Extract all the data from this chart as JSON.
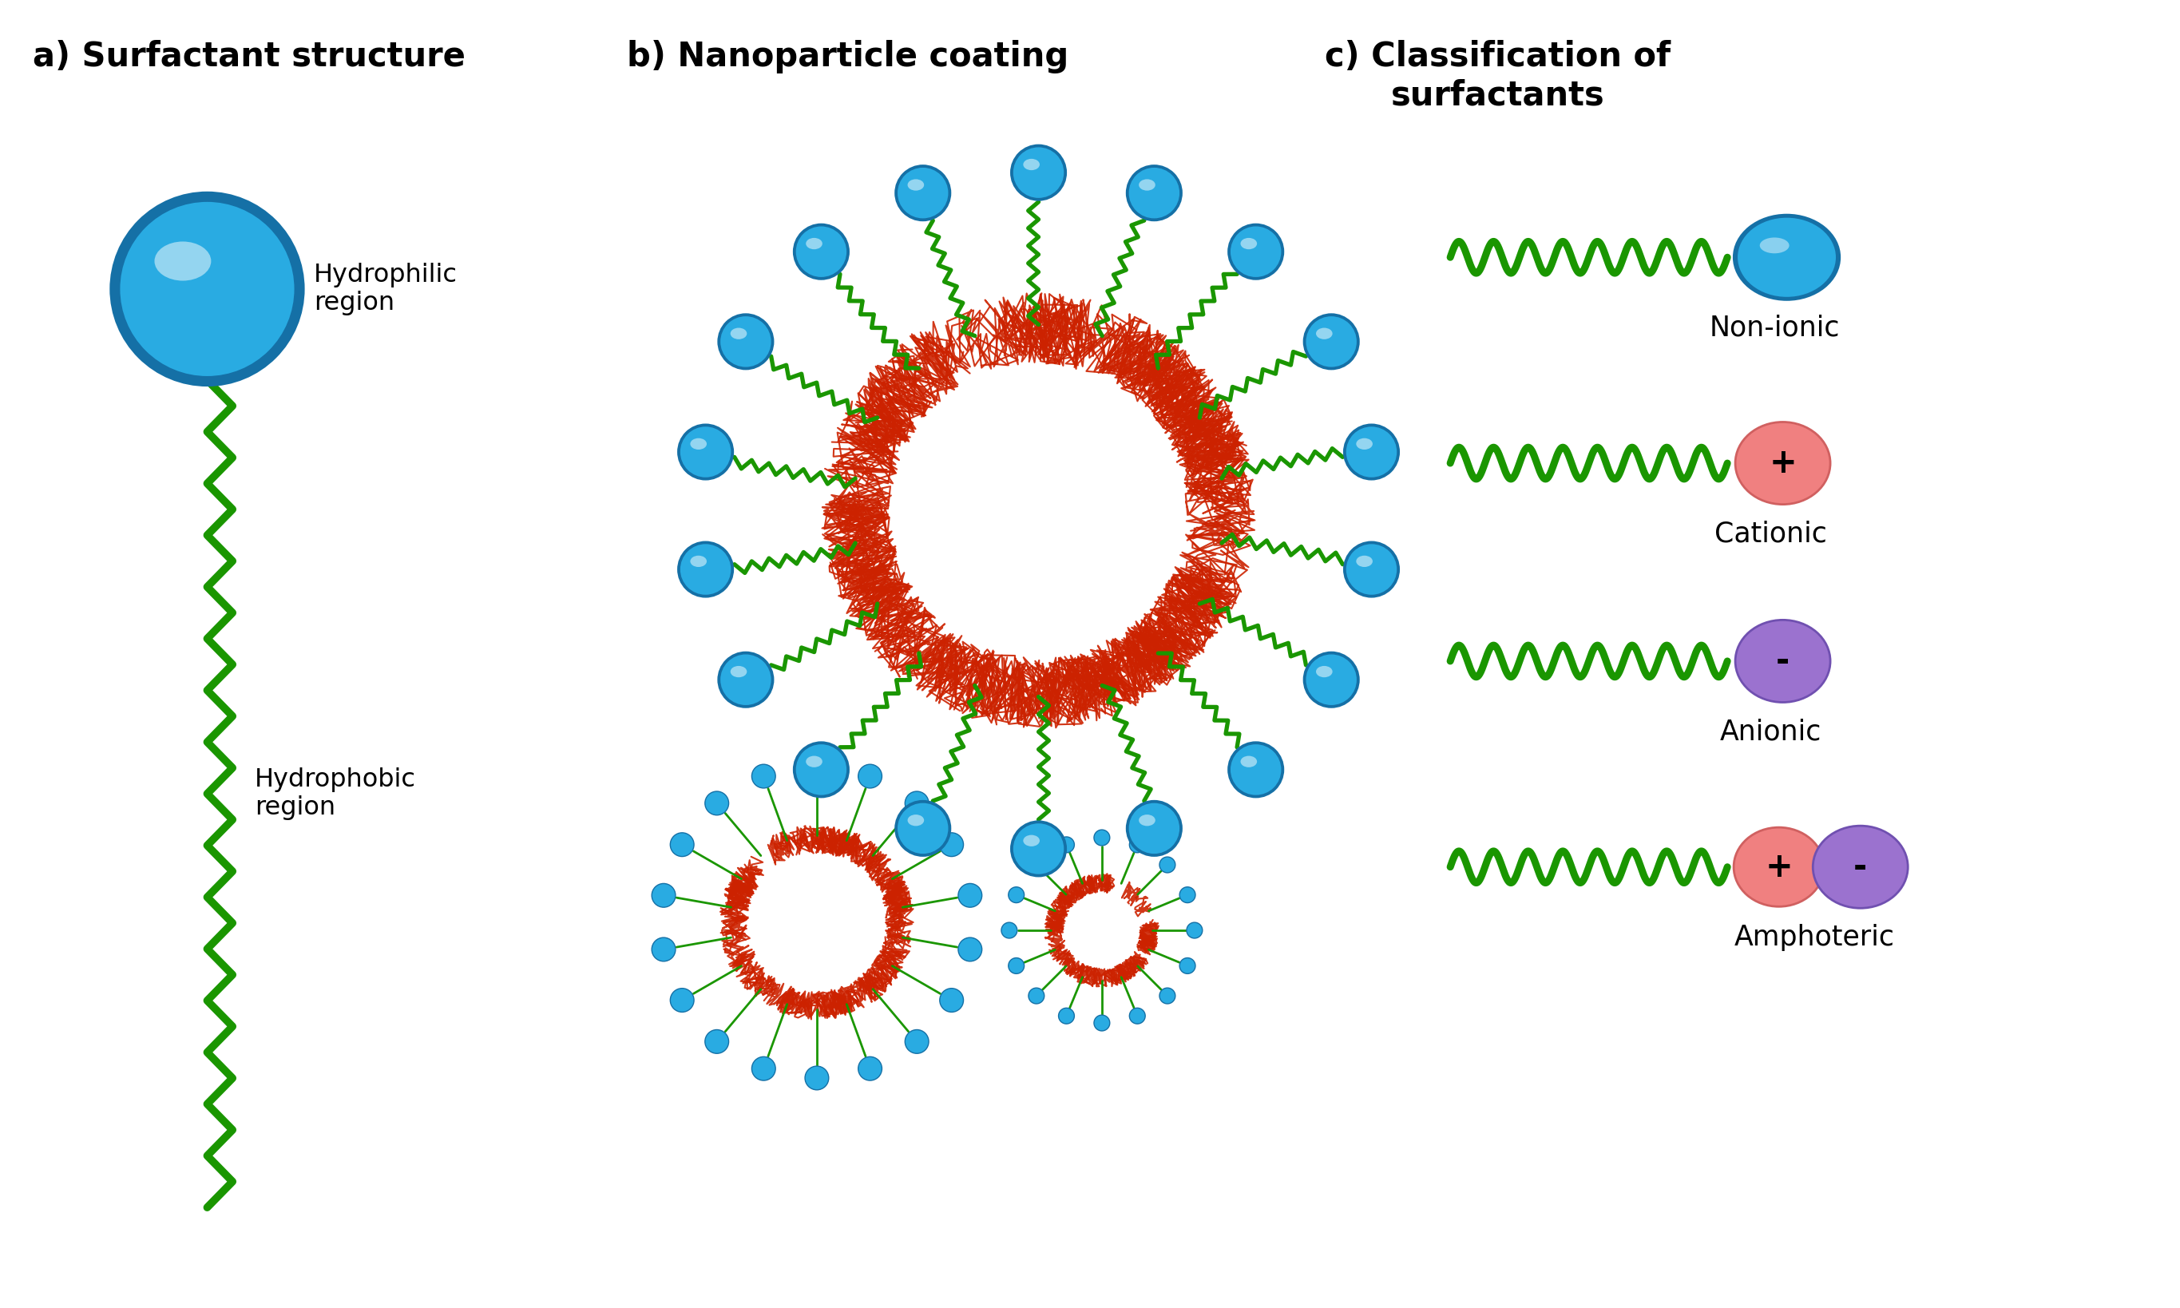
{
  "title_a": "a) Surfactant structure",
  "title_b": "b) Nanoparticle coating",
  "title_c": "c) Classification of\nsurfactants",
  "label_hydrophilic": "Hydrophilic\nregion",
  "label_hydrophobic": "Hydrophobic\nregion",
  "label_non_ionic": "Non-ionic",
  "label_cationic": "Cationic",
  "label_anionic": "Anionic",
  "label_amphoteric": "Amphoteric",
  "color_blue_head": "#29ABE2",
  "color_blue_dark": "#1570A6",
  "color_blue_sphere": "#29ABE2",
  "color_green": "#1A9600",
  "color_red_head": "#F08080",
  "color_purple_head": "#9B72CF",
  "color_red_polymer": "#CC2200",
  "color_cyan_small": "#29ABE2",
  "bg_color": "#FFFFFF",
  "title_fontsize": 30,
  "label_fontsize": 23,
  "classification_fontsize": 25
}
